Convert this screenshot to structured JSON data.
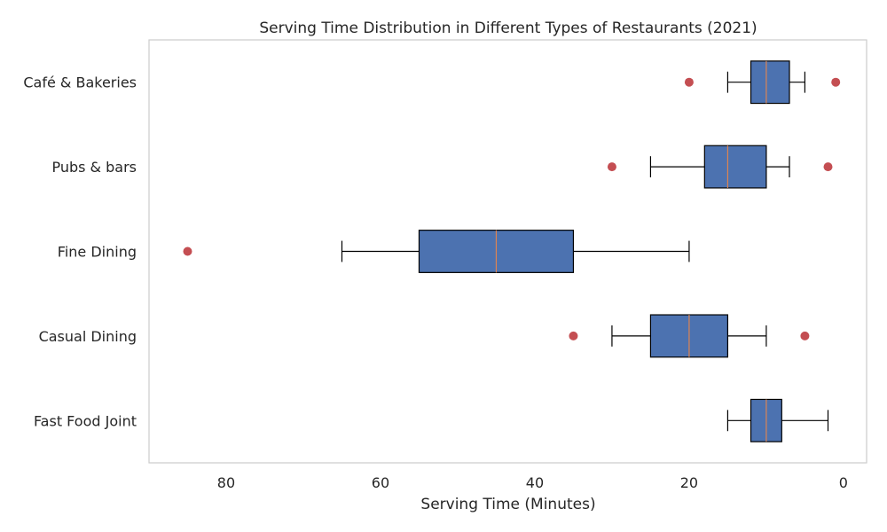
{
  "chart_data": {
    "type": "boxplot",
    "orientation": "horizontal",
    "title": "Serving Time Distribution in Different Types of Restaurants (2021)",
    "xlabel": "Serving Time (Minutes)",
    "ylabel": "",
    "x_axis_inverted": true,
    "xlim": [
      90,
      -3
    ],
    "xticks": [
      80,
      60,
      40,
      20,
      0
    ],
    "grid": false,
    "colors": {
      "box_fill": "#4c72b0",
      "box_edge": "#000000",
      "median": "#dd8452",
      "outlier": "#c44e52",
      "frame": "#cccccc",
      "text": "#262626"
    },
    "categories": [
      "Café & Bakeries",
      "Pubs & bars",
      "Fine Dining",
      "Casual Dining",
      "Fast Food Joint"
    ],
    "boxes": [
      {
        "category": "Café & Bakeries",
        "whisker_low": 5,
        "q1": 7,
        "median": 10,
        "q3": 12,
        "whisker_high": 15,
        "outliers": [
          1,
          20
        ]
      },
      {
        "category": "Pubs & bars",
        "whisker_low": 7,
        "q1": 10,
        "median": 15,
        "q3": 18,
        "whisker_high": 25,
        "outliers": [
          2,
          30
        ]
      },
      {
        "category": "Fine Dining",
        "whisker_low": 20,
        "q1": 35,
        "median": 45,
        "q3": 55,
        "whisker_high": 65,
        "outliers": [
          85
        ]
      },
      {
        "category": "Casual Dining",
        "whisker_low": 10,
        "q1": 15,
        "median": 20,
        "q3": 25,
        "whisker_high": 30,
        "outliers": [
          5,
          35
        ]
      },
      {
        "category": "Fast Food Joint",
        "whisker_low": 2,
        "q1": 8,
        "median": 10,
        "q3": 12,
        "whisker_high": 15,
        "outliers": []
      }
    ]
  }
}
